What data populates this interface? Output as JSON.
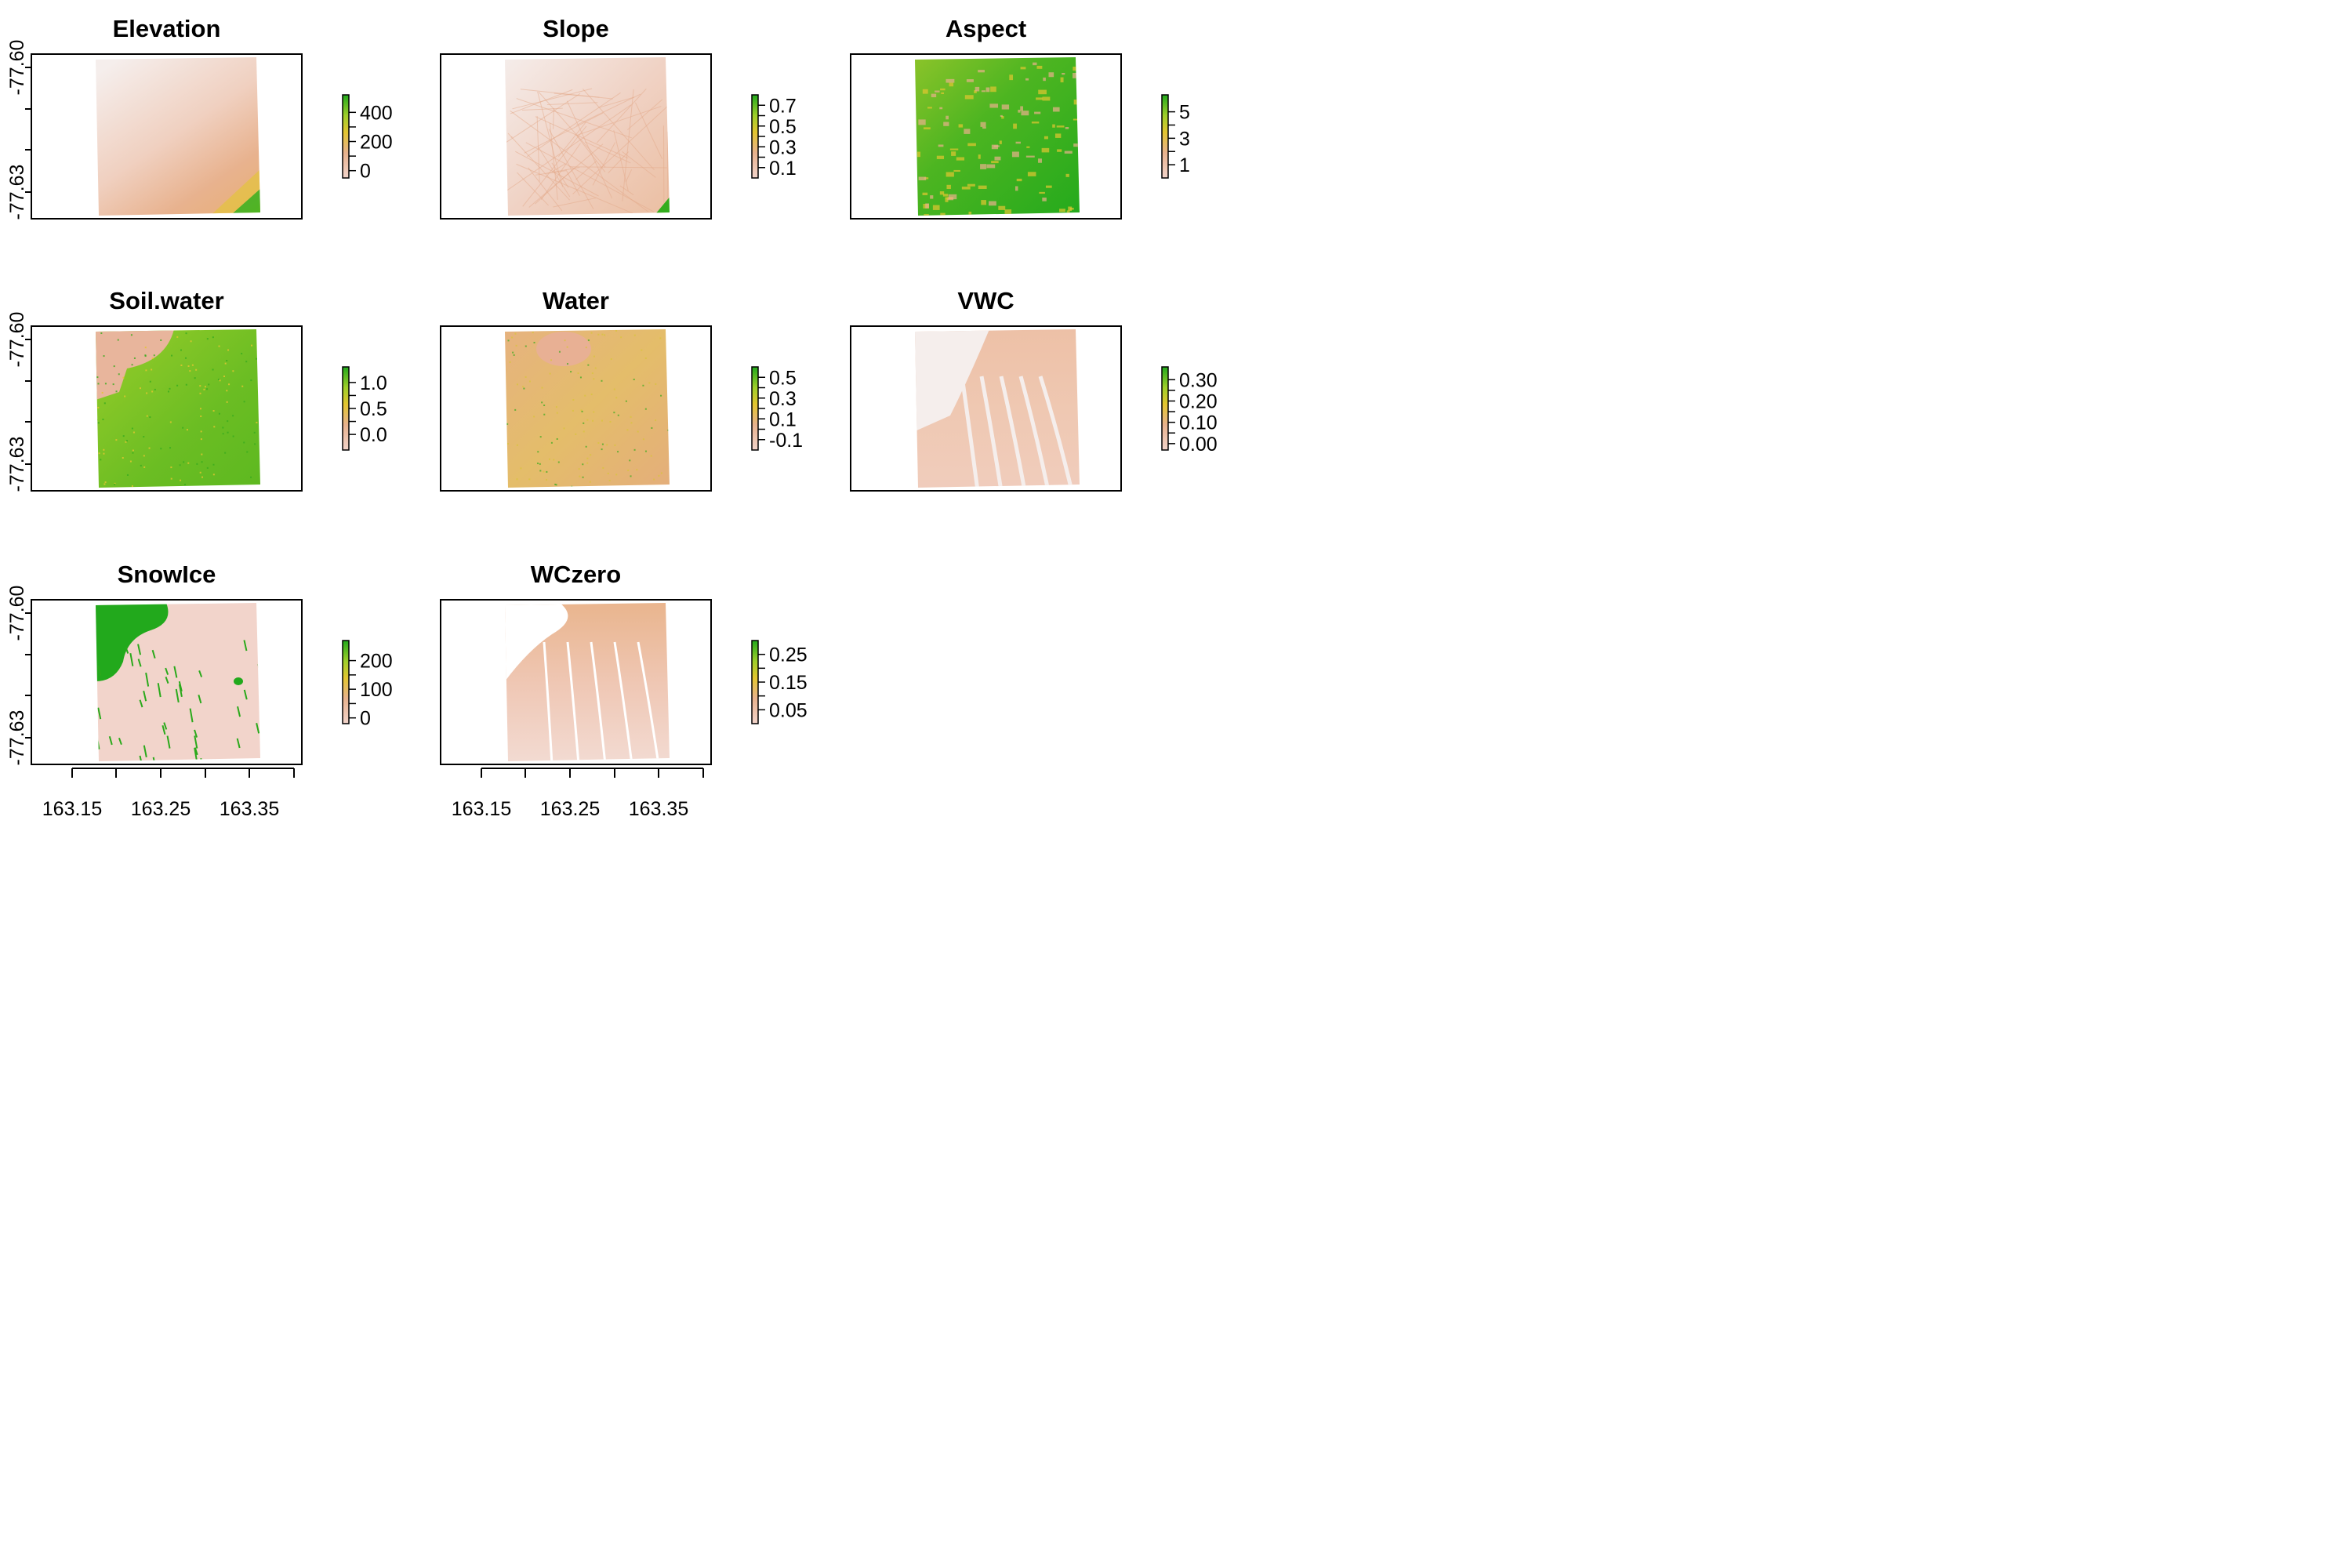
{
  "palette": {
    "low": "#f2d4cb",
    "mid_low": "#e8b28e",
    "mid": "#e3c630",
    "mid_high": "#9fcf2a",
    "high": "#22a91c",
    "snow": "#f5eeec",
    "frame": "#000000"
  },
  "x_ticks": [
    "163.15",
    "163.25",
    "163.35"
  ],
  "y_ticks": [
    "-77.60",
    "-77.63"
  ],
  "chart_data": [
    {
      "type": "heatmap",
      "title": "Elevation",
      "legend_ticks": [
        "400",
        "200",
        "0"
      ],
      "zlim": [
        -50,
        520
      ]
    },
    {
      "type": "heatmap",
      "title": "Slope",
      "legend_ticks": [
        "0.7",
        "0.5",
        "0.3",
        "0.1"
      ],
      "zlim": [
        0,
        0.8
      ]
    },
    {
      "type": "heatmap",
      "title": "Aspect",
      "legend_ticks": [
        "5",
        "3",
        "1"
      ],
      "zlim": [
        0,
        6.28
      ]
    },
    {
      "type": "heatmap",
      "title": "Soil.water",
      "legend_ticks": [
        "1.0",
        "0.5",
        "0.0"
      ],
      "zlim": [
        -0.3,
        1.3
      ]
    },
    {
      "type": "heatmap",
      "title": "Water",
      "legend_ticks": [
        "0.5",
        "0.3",
        "0.1",
        "-0.1"
      ],
      "zlim": [
        -0.2,
        0.6
      ]
    },
    {
      "type": "heatmap",
      "title": "VWC",
      "legend_ticks": [
        "0.30",
        "0.20",
        "0.10",
        "0.00"
      ],
      "zlim": [
        -0.03,
        0.36
      ]
    },
    {
      "type": "heatmap",
      "title": "SnowIce",
      "legend_ticks": [
        "200",
        "100",
        "0"
      ],
      "zlim": [
        -20,
        270
      ]
    },
    {
      "type": "heatmap",
      "title": "WCzero",
      "legend_ticks": [
        "0.25",
        "0.15",
        "0.05"
      ],
      "zlim": [
        0,
        0.3
      ]
    }
  ]
}
